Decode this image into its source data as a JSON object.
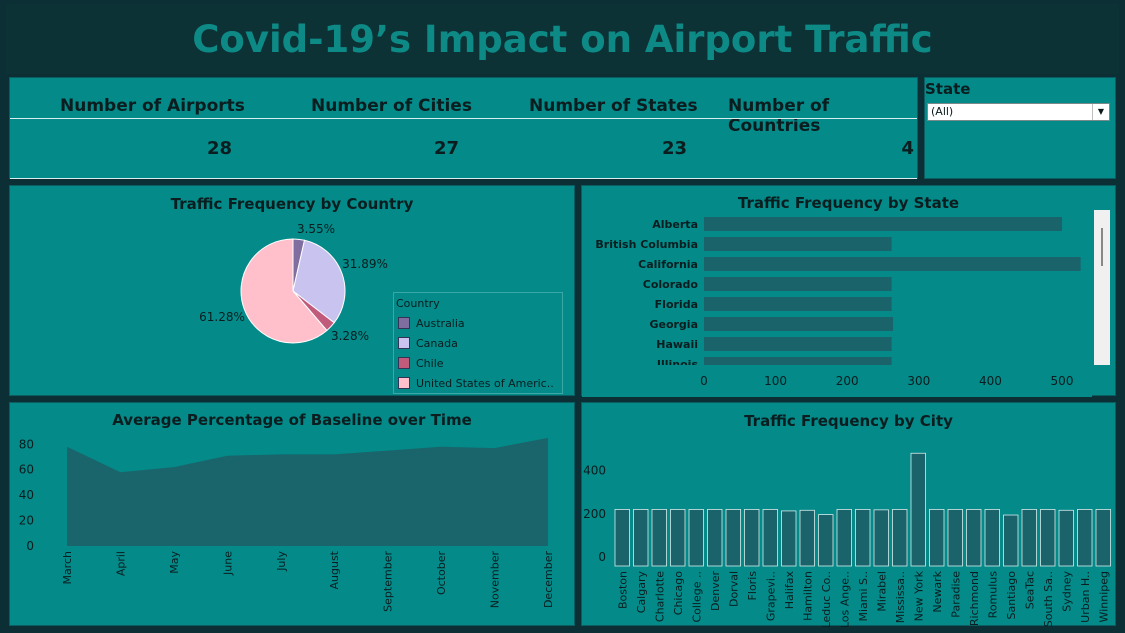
{
  "header": {
    "title": "Covid-19’s Impact on Airport Traffic"
  },
  "kpis": [
    {
      "label": "Number of Airports",
      "value": "28"
    },
    {
      "label": "Number of Cities",
      "value": "27"
    },
    {
      "label": "Number of States",
      "value": "23"
    },
    {
      "label": "Number of Countries",
      "value": "4"
    }
  ],
  "filter": {
    "label": "State",
    "selected": "(All)"
  },
  "legend": {
    "title": "Country",
    "items": [
      "Australia",
      "Canada",
      "Chile",
      "United States of Americ.."
    ]
  },
  "colors": {
    "australia": "#7f6e9f",
    "canada": "#c9c3ef",
    "chile": "#c05b7c",
    "usa": "#ffc0cc",
    "bar": "#1a636a",
    "area": "#1a646b"
  },
  "chart_data": [
    {
      "type": "pie",
      "title": "Traffic Frequency by Country",
      "categories": [
        "Australia",
        "Canada",
        "Chile",
        "United States of Americ.."
      ],
      "values": [
        3.55,
        31.89,
        3.28,
        61.28
      ],
      "labels": [
        "3.55%",
        "31.89%",
        "3.28%",
        "61.28%"
      ]
    },
    {
      "type": "bar",
      "orientation": "horizontal",
      "title": "Traffic Frequency by State",
      "categories": [
        "Alberta",
        "British Columbia",
        "California",
        "Colorado",
        "Florida",
        "Georgia",
        "Hawaii",
        "Illinois"
      ],
      "values": [
        500,
        262,
        526,
        262,
        262,
        264,
        262,
        262
      ],
      "xticks": [
        "0",
        "100",
        "200",
        "300",
        "400",
        "500"
      ],
      "xlim": [
        0,
        560
      ]
    },
    {
      "type": "area",
      "title": "Average Percentage of Baseline over Time",
      "x": [
        "March",
        "April",
        "May",
        "June",
        "July",
        "August",
        "September",
        "October",
        "November",
        "December"
      ],
      "values": [
        78,
        58,
        62,
        71,
        72,
        72,
        75,
        78,
        77,
        85
      ],
      "yticks": [
        "0",
        "20",
        "40",
        "60",
        "80"
      ],
      "ylim": [
        0,
        92
      ]
    },
    {
      "type": "bar",
      "title": "Traffic Frequency by City",
      "categories": [
        "Boston",
        "Calgary",
        "Charlotte",
        "Chicago",
        "College ..",
        "Denver",
        "Dorval",
        "Floris",
        "Grapevi..",
        "Halifax",
        "Hamilton",
        "Leduc Co..",
        "Los Ange..",
        "Miami S..",
        "Mirabel",
        "Mississa..",
        "New York",
        "Newark",
        "Paradise",
        "Richmond",
        "Romulus",
        "Santiago",
        "SeaTac",
        "South Sa..",
        "Sydney",
        "Urban H..",
        "Winnipeg"
      ],
      "values": [
        262,
        262,
        262,
        262,
        262,
        262,
        262,
        262,
        262,
        255,
        258,
        238,
        262,
        262,
        260,
        262,
        522,
        262,
        262,
        262,
        262,
        236,
        262,
        262,
        258,
        262,
        262
      ],
      "yticks": [
        "0",
        "200",
        "400"
      ],
      "ylim": [
        0,
        560
      ]
    }
  ]
}
